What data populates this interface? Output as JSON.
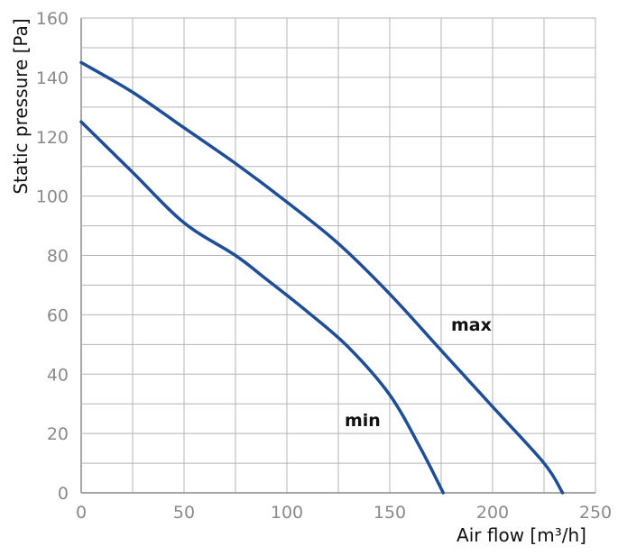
{
  "chart_data": {
    "type": "line",
    "title": "",
    "xlabel": "Air flow [m³/h]",
    "ylabel": "Static pressure [Pa]",
    "xlim": [
      0,
      250
    ],
    "ylim": [
      0,
      160
    ],
    "x_ticks": [
      0,
      50,
      100,
      150,
      200,
      250
    ],
    "y_ticks": [
      0,
      20,
      40,
      60,
      80,
      100,
      120,
      140,
      160
    ],
    "x_tick_labels": [
      "0",
      "50",
      "100",
      "150",
      "200",
      "250"
    ],
    "y_tick_labels": [
      "0",
      "20",
      "40",
      "60",
      "80",
      "100",
      "120",
      "140",
      "160"
    ],
    "grid": true,
    "x_grid_step": 25,
    "y_grid_step": 10,
    "series": [
      {
        "name": "max",
        "color": "#1f4e99",
        "x": [
          0,
          25,
          50,
          75,
          100,
          125,
          150,
          175,
          200,
          225,
          234
        ],
        "y": [
          145,
          135,
          123,
          111,
          98,
          84,
          67,
          48,
          29,
          10,
          0
        ]
      },
      {
        "name": "min",
        "color": "#1f4e99",
        "x": [
          0,
          25,
          50,
          75,
          90,
          110,
          130,
          150,
          165,
          176
        ],
        "y": [
          125,
          108,
          91,
          80,
          72,
          61,
          49,
          33,
          15,
          0
        ]
      }
    ]
  }
}
